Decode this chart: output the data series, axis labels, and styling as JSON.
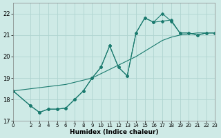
{
  "xlabel": "Humidex (Indice chaleur)",
  "xlim": [
    0,
    23
  ],
  "ylim": [
    17,
    22.5
  ],
  "yticks": [
    17,
    18,
    19,
    20,
    21,
    22
  ],
  "xticks": [
    0,
    2,
    3,
    4,
    5,
    6,
    7,
    8,
    9,
    10,
    11,
    12,
    13,
    14,
    15,
    16,
    17,
    18,
    19,
    20,
    21,
    22,
    23
  ],
  "background_color": "#ceeae6",
  "grid_color": "#b0d4d0",
  "line_color": "#1a7a6e",
  "series": [
    {
      "x": [
        0,
        2,
        3,
        4,
        5,
        6,
        7,
        8,
        9,
        10,
        11,
        12,
        13,
        14,
        15,
        16,
        17,
        18,
        19,
        20,
        21,
        22,
        23
      ],
      "y": [
        18.4,
        18.5,
        18.55,
        18.6,
        18.65,
        18.7,
        18.8,
        18.9,
        19.0,
        19.2,
        19.4,
        19.6,
        19.8,
        20.0,
        20.25,
        20.5,
        20.75,
        20.9,
        21.0,
        21.05,
        21.1,
        21.1,
        21.1
      ],
      "marker": null,
      "markersize": 0
    },
    {
      "x": [
        0,
        2,
        3,
        4,
        5,
        6,
        7,
        8,
        9,
        10,
        11,
        12,
        13,
        14,
        15,
        16,
        17,
        18,
        19,
        20,
        21,
        22,
        23
      ],
      "y": [
        18.4,
        17.7,
        17.4,
        17.55,
        17.55,
        17.6,
        18.0,
        18.4,
        19.0,
        19.5,
        20.5,
        19.5,
        19.1,
        21.1,
        21.8,
        21.6,
        21.65,
        21.7,
        21.1,
        21.1,
        21.0,
        21.1,
        21.1
      ],
      "marker": "D",
      "markersize": 2
    },
    {
      "x": [
        0,
        2,
        3,
        4,
        5,
        6,
        7,
        8,
        9,
        10,
        11,
        12,
        13,
        14,
        15,
        16,
        17,
        18,
        19,
        20,
        21,
        22,
        23
      ],
      "y": [
        18.4,
        17.7,
        17.4,
        17.55,
        17.55,
        17.6,
        18.0,
        18.4,
        19.0,
        19.5,
        20.5,
        19.5,
        19.1,
        21.1,
        21.8,
        21.6,
        22.0,
        21.65,
        21.1,
        21.1,
        21.0,
        21.1,
        21.1
      ],
      "marker": "D",
      "markersize": 2
    }
  ]
}
